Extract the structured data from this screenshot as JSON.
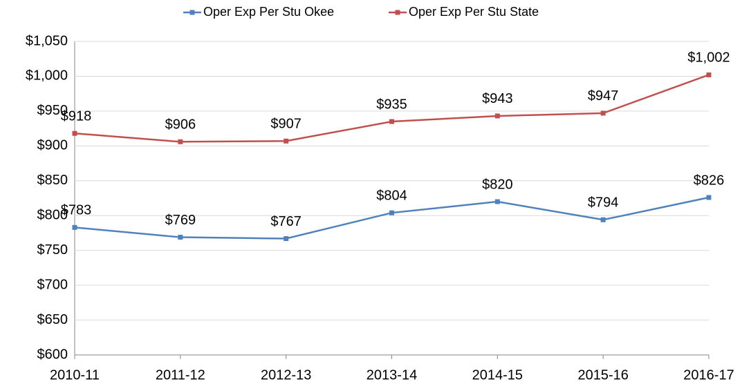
{
  "chart_data": {
    "type": "line",
    "categories": [
      "2010-11",
      "2011-12",
      "2012-13",
      "2013-14",
      "2014-15",
      "2015-16",
      "2016-17"
    ],
    "series": [
      {
        "name": "Oper Exp Per Stu Okee",
        "color": "#4f81bd",
        "values": [
          783,
          769,
          767,
          804,
          820,
          794,
          826
        ],
        "value_labels": [
          "$783",
          "$769",
          "$767",
          "$804",
          "$820",
          "$794",
          "$826"
        ]
      },
      {
        "name": "Oper Exp Per Stu State",
        "color": "#c0504d",
        "values": [
          918,
          906,
          907,
          935,
          943,
          947,
          1002
        ],
        "value_labels": [
          "$918",
          "$906",
          "$907",
          "$935",
          "$943",
          "$947",
          "$1,002"
        ]
      }
    ],
    "ylim": [
      600,
      1050
    ],
    "yticks": [
      {
        "value": 600,
        "label": "$600"
      },
      {
        "value": 650,
        "label": "$650"
      },
      {
        "value": 700,
        "label": "$700"
      },
      {
        "value": 750,
        "label": "$750"
      },
      {
        "value": 800,
        "label": "$800"
      },
      {
        "value": 850,
        "label": "$850"
      },
      {
        "value": 900,
        "label": "$900"
      },
      {
        "value": 950,
        "label": "$950"
      },
      {
        "value": 1000,
        "label": "$1,000"
      },
      {
        "value": 1050,
        "label": "$1,050"
      }
    ],
    "grid": true,
    "legend": "top"
  }
}
